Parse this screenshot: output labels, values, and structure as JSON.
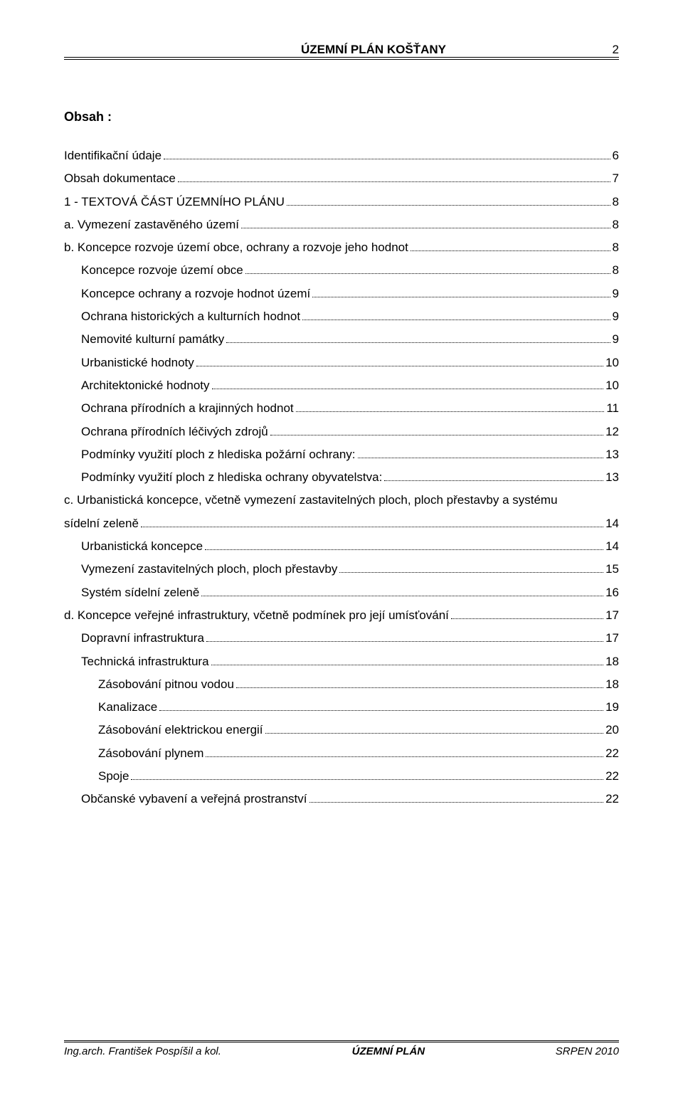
{
  "header": {
    "title": "ÚZEMNÍ PLÁN KOŠŤANY",
    "page_number": "2"
  },
  "toc": {
    "heading": "Obsah :",
    "items": [
      {
        "level": 0,
        "label": "Identifikační údaje",
        "page": "6"
      },
      {
        "level": 0,
        "label": "Obsah dokumentace",
        "page": "7"
      },
      {
        "level": 0,
        "label": "1 - TEXTOVÁ ČÁST ÚZEMNÍHO PLÁNU",
        "page": "8"
      },
      {
        "level": 0,
        "label": "a. Vymezení zastavěného území",
        "page": "8"
      },
      {
        "level": 0,
        "label": "b. Koncepce rozvoje území obce, ochrany a rozvoje jeho hodnot",
        "page": "8"
      },
      {
        "level": 1,
        "label": "Koncepce rozvoje území obce",
        "page": "8"
      },
      {
        "level": 1,
        "label": "Koncepce ochrany a rozvoje hodnot území",
        "page": "9"
      },
      {
        "level": 1,
        "label": "Ochrana historických a kulturních hodnot",
        "page": "9"
      },
      {
        "level": 1,
        "label": "Nemovité kulturní památky",
        "page": "9"
      },
      {
        "level": 1,
        "label": "Urbanistické hodnoty",
        "page": "10"
      },
      {
        "level": 1,
        "label": "Architektonické hodnoty",
        "page": "10"
      },
      {
        "level": 1,
        "label": "Ochrana přírodních a krajinných hodnot",
        "page": "11"
      },
      {
        "level": 1,
        "label": "Ochrana přírodních léčivých zdrojů",
        "page": "12"
      },
      {
        "level": 1,
        "label": "Podmínky využití ploch z hlediska požární ochrany:",
        "page": "13"
      },
      {
        "level": 1,
        "label": "Podmínky využití ploch z hlediska ochrany obyvatelstva:",
        "page": "13"
      },
      {
        "level": 0,
        "label": "c. Urbanistická koncepce, včetně vymezení zastavitelných ploch, ploch přestavby a systému sídelní zeleně",
        "page": "14",
        "wrap": true
      },
      {
        "level": 1,
        "label": "Urbanistická koncepce",
        "page": "14"
      },
      {
        "level": 1,
        "label": "Vymezení  zastavitelných ploch, ploch přestavby",
        "page": "15"
      },
      {
        "level": 1,
        "label": "Systém sídelní zeleně",
        "page": "16"
      },
      {
        "level": 0,
        "label": "d. Koncepce veřejné infrastruktury, včetně podmínek pro její umísťování",
        "page": "17"
      },
      {
        "level": 1,
        "label": "Dopravní  infrastruktura",
        "page": "17"
      },
      {
        "level": 1,
        "label": "Technická infrastruktura",
        "page": "18"
      },
      {
        "level": 2,
        "label": "Zásobování pitnou vodou",
        "page": "18"
      },
      {
        "level": 2,
        "label": "Kanalizace",
        "page": "19"
      },
      {
        "level": 2,
        "label": "Zásobování elektrickou energií",
        "page": "20"
      },
      {
        "level": 2,
        "label": "Zásobování plynem",
        "page": "22"
      },
      {
        "level": 2,
        "label": "Spoje",
        "page": "22"
      },
      {
        "level": 1,
        "label": "Občanské vybavení a veřejná prostranství",
        "page": "22"
      }
    ]
  },
  "footer": {
    "left": "Ing.arch. František  Pospíšil a kol.",
    "center": "ÚZEMNÍ PLÁN",
    "right": "SRPEN 2010"
  },
  "colors": {
    "text": "#000000",
    "background": "#ffffff",
    "rule": "#000000"
  },
  "typography": {
    "body_fontsize": 17,
    "heading_fontsize": 18,
    "footer_fontsize": 15,
    "font_family": "Arial"
  }
}
